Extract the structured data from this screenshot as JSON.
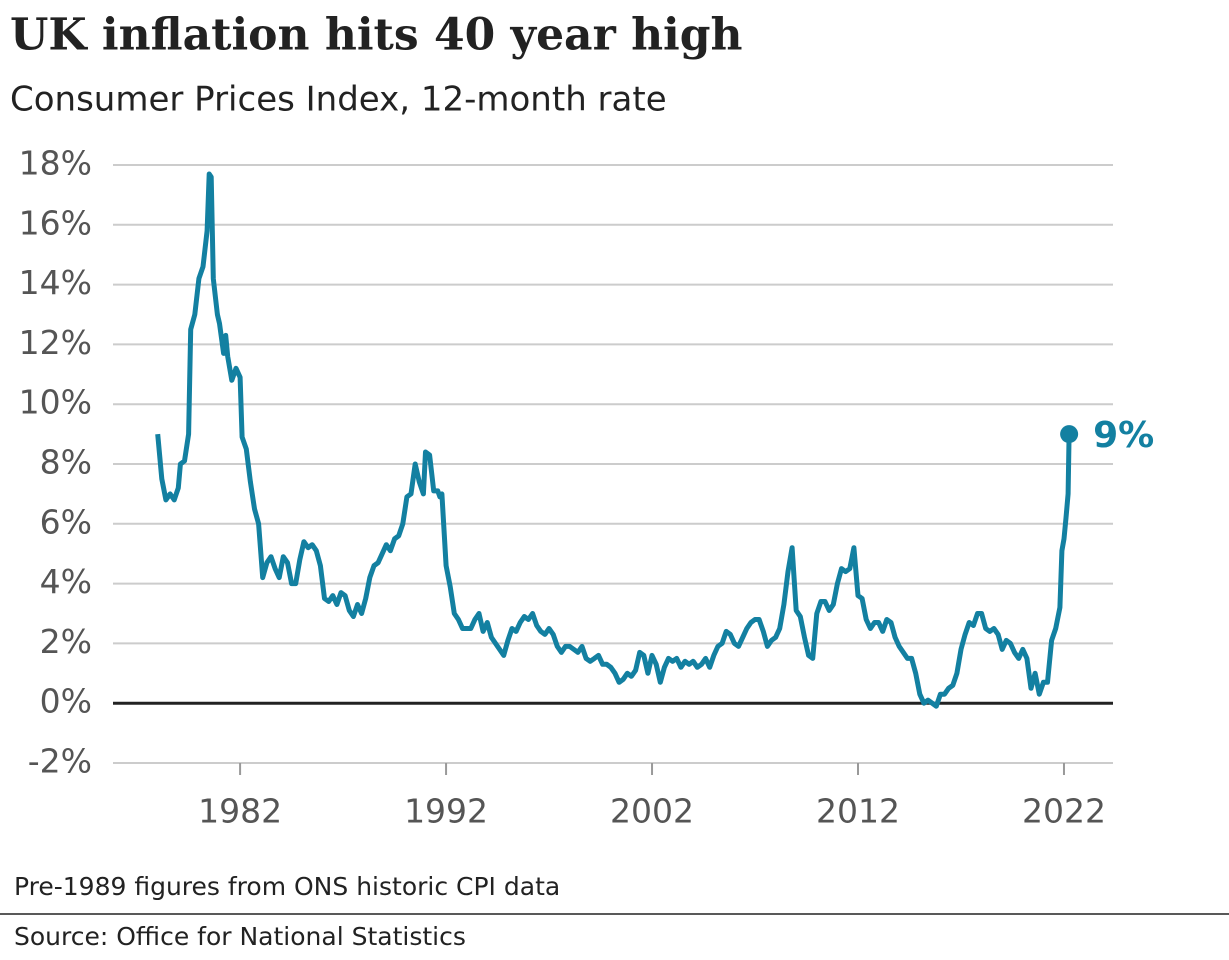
{
  "chart_data": {
    "type": "line",
    "title": "UK inflation hits 40 year high",
    "subtitle": "Consumer Prices Index, 12-month rate",
    "footnote": "Pre-1989 figures from ONS historic CPI data",
    "source": "Source: Office for National Statistics",
    "xlim": [
      1975.83,
      2024.38
    ],
    "xticks": [
      1982,
      1992,
      2002,
      2012,
      2022
    ],
    "ylim": [
      -2,
      18
    ],
    "yticks": [
      {
        "value": -2,
        "label": "-2%"
      },
      {
        "value": 0,
        "label": "0%"
      },
      {
        "value": 2,
        "label": "2%"
      },
      {
        "value": 4,
        "label": "4%"
      },
      {
        "value": 6,
        "label": "6%"
      },
      {
        "value": 8,
        "label": "8%"
      },
      {
        "value": 10,
        "label": "10%"
      },
      {
        "value": 12,
        "label": "12%"
      },
      {
        "value": 14,
        "label": "14%"
      },
      {
        "value": 16,
        "label": "16%"
      },
      {
        "value": 18,
        "label": "18%"
      }
    ],
    "grid": true,
    "series": [
      {
        "color": "#1380a1",
        "x": [
          1978.0,
          1978.2,
          1978.4,
          1978.6,
          1978.8,
          1979.0,
          1979.1,
          1979.3,
          1979.5,
          1979.6,
          1979.8,
          1980.0,
          1980.2,
          1980.4,
          1980.5,
          1980.6,
          1980.7,
          1980.9,
          1981.0,
          1981.2,
          1981.3,
          1981.4,
          1981.6,
          1981.8,
          1982.0,
          1982.1,
          1982.3,
          1982.5,
          1982.7,
          1982.9,
          1983.1,
          1983.3,
          1983.5,
          1983.7,
          1983.9,
          1984.1,
          1984.3,
          1984.5,
          1984.7,
          1984.9,
          1985.1,
          1985.3,
          1985.5,
          1985.7,
          1985.9,
          1986.1,
          1986.3,
          1986.5,
          1986.7,
          1986.9,
          1987.1,
          1987.3,
          1987.5,
          1987.7,
          1987.9,
          1988.1,
          1988.3,
          1988.5,
          1988.7,
          1988.9,
          1989.1,
          1989.3,
          1989.5,
          1989.7,
          1989.9,
          1990.1,
          1990.3,
          1990.5,
          1990.7,
          1990.9,
          1991.0,
          1991.2,
          1991.4,
          1991.6,
          1991.7,
          1991.8,
          1992.0,
          1992.2,
          1992.4,
          1992.6,
          1992.8,
          1993.0,
          1993.2,
          1993.4,
          1993.6,
          1993.8,
          1994.0,
          1994.2,
          1994.4,
          1994.6,
          1994.8,
          1995.0,
          1995.2,
          1995.4,
          1995.6,
          1995.8,
          1996.0,
          1996.2,
          1996.4,
          1996.6,
          1996.8,
          1997.0,
          1997.2,
          1997.4,
          1997.6,
          1997.8,
          1998.0,
          1998.2,
          1998.4,
          1998.6,
          1998.8,
          1999.0,
          1999.2,
          1999.4,
          1999.6,
          1999.8,
          2000.0,
          2000.2,
          2000.4,
          2000.6,
          2000.8,
          2001.0,
          2001.2,
          2001.4,
          2001.6,
          2001.8,
          2002.0,
          2002.2,
          2002.4,
          2002.6,
          2002.8,
          2003.0,
          2003.2,
          2003.4,
          2003.6,
          2003.8,
          2004.0,
          2004.2,
          2004.4,
          2004.6,
          2004.8,
          2005.0,
          2005.2,
          2005.4,
          2005.6,
          2005.8,
          2006.0,
          2006.2,
          2006.4,
          2006.6,
          2006.8,
          2007.0,
          2007.2,
          2007.4,
          2007.6,
          2007.8,
          2008.0,
          2008.2,
          2008.4,
          2008.6,
          2008.8,
          2009.0,
          2009.2,
          2009.4,
          2009.6,
          2009.8,
          2010.0,
          2010.2,
          2010.4,
          2010.6,
          2010.8,
          2011.0,
          2011.2,
          2011.4,
          2011.6,
          2011.8,
          2012.0,
          2012.2,
          2012.4,
          2012.6,
          2012.8,
          2013.0,
          2013.2,
          2013.4,
          2013.6,
          2013.8,
          2014.0,
          2014.2,
          2014.4,
          2014.6,
          2014.8,
          2015.0,
          2015.2,
          2015.4,
          2015.6,
          2015.8,
          2016.0,
          2016.2,
          2016.4,
          2016.6,
          2016.8,
          2017.0,
          2017.2,
          2017.4,
          2017.6,
          2017.8,
          2018.0,
          2018.2,
          2018.4,
          2018.6,
          2018.8,
          2019.0,
          2019.2,
          2019.4,
          2019.6,
          2019.8,
          2020.0,
          2020.2,
          2020.4,
          2020.6,
          2020.8,
          2021.0,
          2021.2,
          2021.4,
          2021.6,
          2021.8,
          2021.9,
          2022.0,
          2022.1,
          2022.2,
          2022.25
        ],
        "values": [
          9.0,
          7.5,
          6.8,
          7.0,
          6.8,
          7.2,
          8.0,
          8.1,
          9.0,
          12.5,
          13.0,
          14.2,
          14.6,
          15.8,
          17.7,
          17.6,
          14.2,
          13.0,
          12.7,
          11.7,
          12.3,
          11.6,
          10.8,
          11.2,
          10.9,
          8.9,
          8.5,
          7.4,
          6.5,
          6.0,
          4.2,
          4.7,
          4.9,
          4.5,
          4.2,
          4.9,
          4.7,
          4.0,
          4.0,
          4.8,
          5.4,
          5.2,
          5.3,
          5.1,
          4.6,
          3.5,
          3.4,
          3.6,
          3.3,
          3.7,
          3.6,
          3.1,
          2.9,
          3.3,
          3.0,
          3.5,
          4.2,
          4.6,
          4.7,
          5.0,
          5.3,
          5.1,
          5.5,
          5.6,
          6.0,
          6.9,
          7.0,
          8.0,
          7.4,
          7.0,
          8.4,
          8.3,
          7.1,
          7.1,
          6.9,
          7.0,
          4.6,
          3.9,
          3.0,
          2.8,
          2.5,
          2.5,
          2.5,
          2.8,
          3.0,
          2.4,
          2.7,
          2.2,
          2.0,
          1.8,
          1.6,
          2.1,
          2.5,
          2.4,
          2.7,
          2.9,
          2.8,
          3.0,
          2.6,
          2.4,
          2.3,
          2.5,
          2.3,
          1.9,
          1.7,
          1.9,
          1.9,
          1.8,
          1.7,
          1.9,
          1.5,
          1.4,
          1.5,
          1.6,
          1.3,
          1.3,
          1.2,
          1.0,
          0.7,
          0.8,
          1.0,
          0.9,
          1.1,
          1.7,
          1.6,
          1.0,
          1.6,
          1.3,
          0.7,
          1.2,
          1.5,
          1.4,
          1.5,
          1.2,
          1.4,
          1.3,
          1.4,
          1.2,
          1.3,
          1.5,
          1.2,
          1.6,
          1.9,
          2.0,
          2.4,
          2.3,
          2.0,
          1.9,
          2.2,
          2.5,
          2.7,
          2.8,
          2.8,
          2.4,
          1.9,
          2.1,
          2.2,
          2.5,
          3.3,
          4.4,
          5.2,
          3.1,
          2.9,
          2.2,
          1.6,
          1.5,
          3.0,
          3.4,
          3.4,
          3.1,
          3.3,
          4.0,
          4.5,
          4.4,
          4.5,
          5.2,
          3.6,
          3.5,
          2.8,
          2.5,
          2.7,
          2.7,
          2.4,
          2.8,
          2.7,
          2.2,
          1.9,
          1.7,
          1.5,
          1.5,
          1.0,
          0.3,
          0.0,
          0.1,
          0.0,
          -0.1,
          0.3,
          0.3,
          0.5,
          0.6,
          1.0,
          1.8,
          2.3,
          2.7,
          2.6,
          3.0,
          3.0,
          2.5,
          2.4,
          2.5,
          2.3,
          1.8,
          2.1,
          2.0,
          1.7,
          1.5,
          1.8,
          1.5,
          0.5,
          1.0,
          0.3,
          0.7,
          0.7,
          2.1,
          2.5,
          3.2,
          5.1,
          5.5,
          6.2,
          7.0,
          9.0
        ]
      },
      {
        "color": "#1380a1",
        "x": [
          2022.25
        ],
        "values": [
          9
        ],
        "value_labels": [
          "9%"
        ]
      }
    ]
  }
}
